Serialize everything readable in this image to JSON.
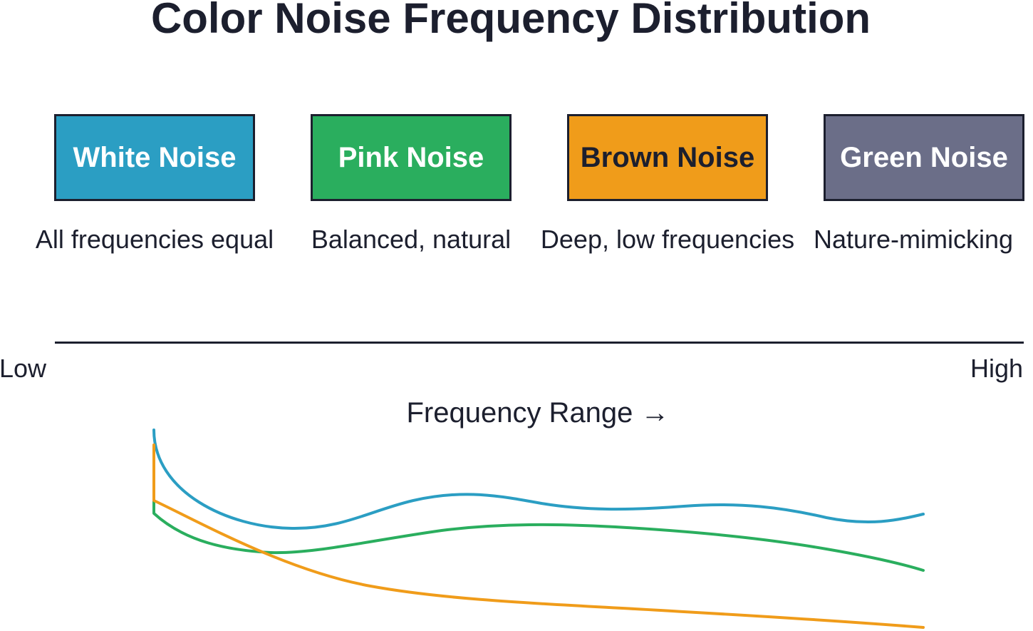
{
  "title": "Color Noise Frequency Distribution",
  "noises": [
    {
      "label": "White Noise",
      "description": "All frequencies equal",
      "color": "#2b9ec3",
      "text_color": "#ffffff"
    },
    {
      "label": "Pink Noise",
      "description": "Balanced, natural",
      "color": "#2aae5e",
      "text_color": "#ffffff"
    },
    {
      "label": "Brown Noise",
      "description": "Deep, low frequencies",
      "color": "#f09c1a",
      "text_color": "#1c1f2e"
    },
    {
      "label": "Green Noise",
      "description": "Nature-mimicking",
      "color": "#6b6e88",
      "text_color": "#ffffff"
    }
  ],
  "axis": {
    "low_label": "Low",
    "high_label": "High",
    "caption": "Frequency Range →"
  },
  "curves": [
    {
      "series": "White Noise",
      "color": "#2b9ec3"
    },
    {
      "series": "Pink Noise",
      "color": "#2aae5e"
    },
    {
      "series": "Brown Noise",
      "color": "#f09c1a"
    }
  ],
  "colors": {
    "ink": "#1c1f2e",
    "background": "#ffffff"
  }
}
